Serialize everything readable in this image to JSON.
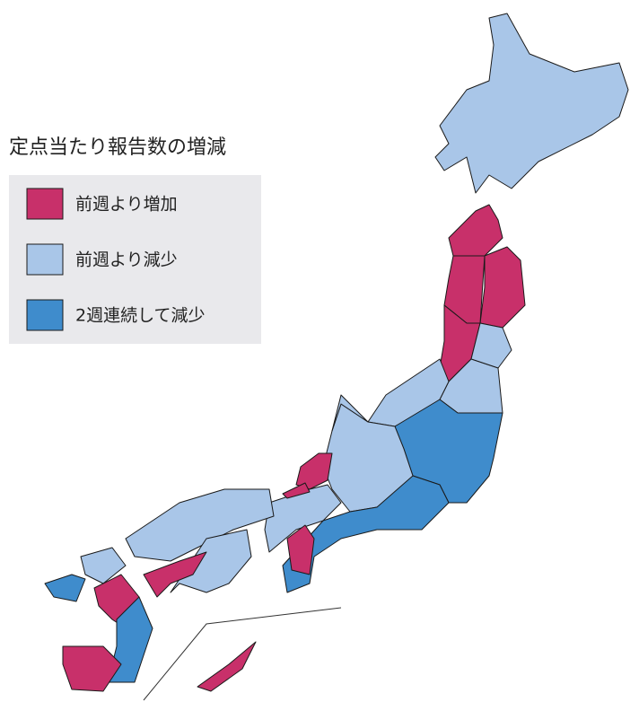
{
  "title": "定点当たり報告数の増減",
  "legend": [
    {
      "label": "前週より増加",
      "color": "#c8306a"
    },
    {
      "label": "前週より減少",
      "color": "#a9c6e8"
    },
    {
      "label": "2週連続して減少",
      "color": "#3f8ccc"
    }
  ]
}
